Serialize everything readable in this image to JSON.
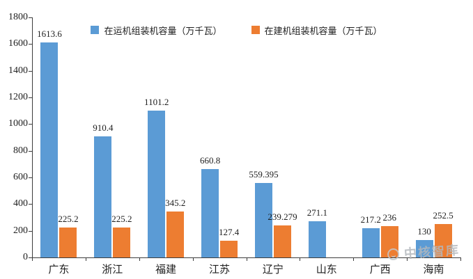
{
  "chart_data": {
    "type": "bar",
    "categories": [
      "广东",
      "浙江",
      "福建",
      "江苏",
      "辽宁",
      "山东",
      "广西",
      "海南"
    ],
    "series": [
      {
        "name": "在运机组装机容量（万千瓦）",
        "color": "#5B9BD5",
        "values": [
          1613.6,
          910.4,
          1101.2,
          660.8,
          559.395,
          271.1,
          217.2,
          130
        ]
      },
      {
        "name": "在建机组装机容量（万千瓦）",
        "color": "#ED7D31",
        "values": [
          225.2,
          225.2,
          345.2,
          127.4,
          239.279,
          null,
          236,
          252.5
        ]
      }
    ],
    "title": "",
    "xlabel": "",
    "ylabel": "",
    "ylim": [
      0,
      1800
    ],
    "ytick_step": 200,
    "yticks": [
      0,
      200,
      400,
      600,
      800,
      1000,
      1200,
      1400,
      1600,
      1800
    ],
    "grid": false,
    "legend_position": "top",
    "data_labels": true
  },
  "watermark": {
    "label": "中核智库"
  },
  "colors": {
    "series_operating": "#5B9BD5",
    "series_under_construction": "#ED7D31",
    "axis": "#3c3c3c",
    "watermark_gray": "#b3b8bd",
    "background": "#ffffff"
  }
}
